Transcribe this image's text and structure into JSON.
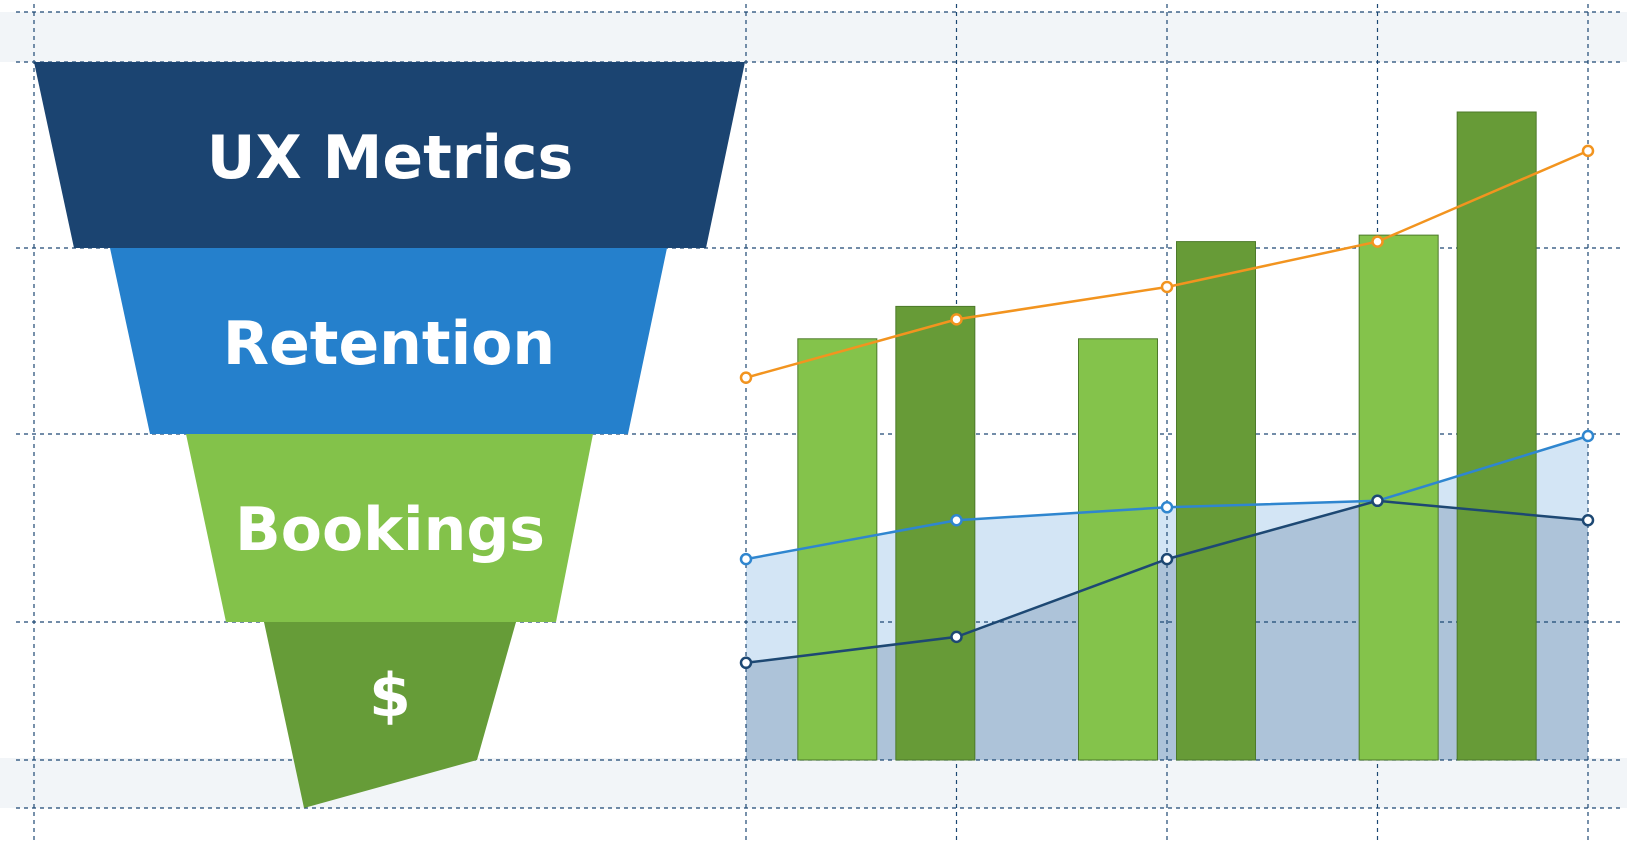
{
  "funnel": {
    "stages": [
      {
        "label": "UX Metrics",
        "color": "#1b4471",
        "shade": "#2a5a8c"
      },
      {
        "label": "Retention",
        "color": "#2580cc",
        "shade": "#3a92d8"
      },
      {
        "label": "Bookings",
        "color": "#83c24a",
        "shade": "#93cc5c"
      },
      {
        "label": "$",
        "color": "#669c38",
        "shade": "#74a943"
      }
    ]
  },
  "chart_data": {
    "type": "bar",
    "bar_colors": [
      "#84c34b",
      "#679b37"
    ],
    "bar_groups": [
      [
        0.65,
        0.7
      ],
      [
        0.65,
        0.8
      ],
      [
        0.81,
        1.0
      ]
    ],
    "lines": [
      {
        "color": "#f2941f",
        "fill": "none",
        "values": [
          0.59,
          0.68,
          0.73,
          0.8,
          0.94
        ]
      },
      {
        "color": "#2f86cf",
        "fill": "#d3e5f5",
        "values": [
          0.31,
          0.37,
          0.39,
          0.4,
          0.5
        ]
      },
      {
        "color": "#1d4873",
        "fill": "#adc3d9",
        "values": [
          0.15,
          0.19,
          0.31,
          0.4,
          0.37
        ]
      }
    ],
    "grid": true
  }
}
